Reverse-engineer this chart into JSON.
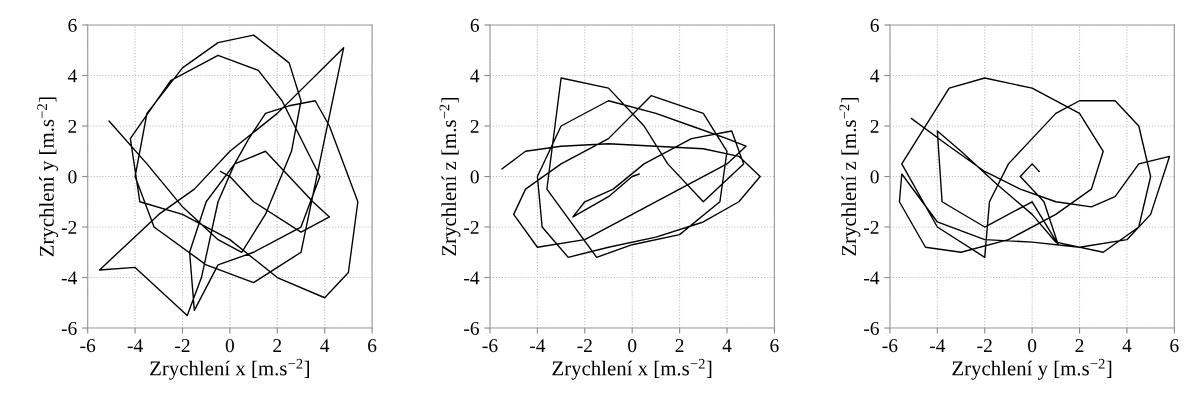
{
  "chart_data": [
    {
      "type": "line",
      "xlabel": "Zrychlení x [m.s$^{−2}$]",
      "ylabel": "Zrychlení y [m.s$^{−2}$]",
      "xlim": [
        -6,
        6
      ],
      "ylim": [
        -6,
        6
      ],
      "xticks": [
        -6,
        -4,
        -2,
        0,
        2,
        4,
        6
      ],
      "yticks": [
        -6,
        -4,
        -2,
        0,
        2,
        4,
        6
      ],
      "grid": true,
      "series": [
        {
          "color": "#000000",
          "x": [
            -5.1,
            -3.5,
            -2,
            -0.5,
            0.5,
            1.5,
            2.6,
            3.0,
            2.5,
            1,
            -0.5,
            -2,
            -3.5,
            -4,
            -3.2,
            -1,
            1,
            3,
            4.8,
            2,
            0,
            -1.5,
            -3,
            -5.5,
            -4,
            -1.8,
            -1.2,
            -0.5,
            0.2,
            0.8,
            1.5,
            2.5,
            3.6,
            4.2,
            5.4,
            5,
            4,
            2,
            0,
            -2,
            -3.8,
            -4.2,
            -2.5,
            -0.5,
            1.2,
            2.2,
            3.8,
            3,
            1,
            -0.5,
            -1.5,
            -1.7,
            -1,
            0.2,
            1.5,
            3.5,
            4.2,
            3,
            1,
            0,
            -0.4
          ],
          "values": [
            2.2,
            0.5,
            -1.2,
            -2.5,
            -3,
            -1.5,
            1,
            3,
            4.5,
            5.6,
            5.3,
            4.3,
            2.5,
            0,
            -2,
            -3.5,
            -4.2,
            -3,
            5.1,
            2.5,
            1,
            -0.5,
            -1.5,
            -3.7,
            -3.6,
            -5.5,
            -4,
            -1,
            0.5,
            1.5,
            2.5,
            2.8,
            3,
            2,
            -1,
            -3.8,
            -4.8,
            -4,
            -2.5,
            -1.5,
            -1,
            1.5,
            3.8,
            4.8,
            4.2,
            3,
            0,
            -2,
            -3,
            -3.5,
            -5.3,
            -3,
            -1,
            0.5,
            1,
            -1,
            -1.6,
            -2.2,
            -1,
            0,
            0.2
          ]
        }
      ]
    },
    {
      "type": "line",
      "xlabel": "Zrychlení x [m.s$^{−2}$]",
      "ylabel": "Zrychlení z [m.s$^{−2}$]",
      "xlim": [
        -6,
        6
      ],
      "ylim": [
        -6,
        6
      ],
      "xticks": [
        -6,
        -4,
        -2,
        0,
        2,
        4,
        6
      ],
      "yticks": [
        -6,
        -4,
        -2,
        0,
        2,
        4,
        6
      ],
      "grid": true,
      "series": [
        {
          "color": "#000000",
          "x": [
            -5.5,
            -4.5,
            -3,
            -1,
            1,
            3,
            4.5,
            5.4,
            4.5,
            3,
            1,
            -1,
            -2.7,
            -3.8,
            -4,
            -3,
            -1,
            1,
            2.5,
            4,
            4.8,
            4,
            2,
            0,
            -2,
            -4,
            -5,
            -4.5,
            -3,
            -1,
            0.8,
            3,
            4,
            3.7,
            2,
            0,
            -1.5,
            -3.6,
            -3,
            -1,
            0.5,
            1.5,
            3,
            4.7,
            4.2,
            2.5,
            0.5,
            -0.8,
            -2,
            -2.5,
            -1,
            0,
            0.3
          ],
          "values": [
            0.3,
            1,
            1.2,
            1.3,
            1.2,
            1.1,
            0.8,
            0,
            -1,
            -1.8,
            -2.4,
            -2.8,
            -3.2,
            -2,
            0,
            2,
            3,
            2.5,
            2,
            1.5,
            1.2,
            0.5,
            -0.5,
            -1.5,
            -2.5,
            -2.8,
            -1.5,
            -0.5,
            0.5,
            1.5,
            3.2,
            2.5,
            1,
            -1,
            -2.3,
            -2.7,
            -3.2,
            -0.5,
            3.9,
            3.5,
            2,
            0.5,
            -1,
            0.5,
            1.8,
            1.5,
            0.5,
            -0.5,
            -1,
            -1.6,
            -0.8,
            0,
            0.1
          ]
        }
      ]
    },
    {
      "type": "line",
      "xlabel": "Zrychlení y [m.s$^{−2}$]",
      "ylabel": "Zrychlení z [m.s$^{−2}$]",
      "xlim": [
        -6,
        6
      ],
      "ylim": [
        -6,
        6
      ],
      "xticks": [
        -6,
        -4,
        -2,
        0,
        2,
        4,
        6
      ],
      "yticks": [
        -6,
        -4,
        -2,
        0,
        2,
        4,
        6
      ],
      "grid": true,
      "series": [
        {
          "color": "#000000",
          "x": [
            -5.1,
            -3.5,
            -2,
            -0.5,
            1,
            2.5,
            3.5,
            4.5,
            5.8,
            5,
            4,
            2,
            0,
            -2,
            -4,
            -5.5,
            -5.6,
            -4.5,
            -3,
            -1,
            1,
            2.5,
            3,
            2,
            0,
            -2,
            -3.5,
            -5.5,
            -4,
            -2,
            -1.8,
            -1,
            0,
            1,
            2,
            3.5,
            4.5,
            5,
            4.5,
            3,
            1,
            0,
            -1.5,
            -3,
            -4,
            -3.8,
            -2,
            0,
            1.1,
            0.5,
            -0.5,
            0,
            0.3
          ],
          "values": [
            2.3,
            1.2,
            0.2,
            -0.5,
            -1,
            -1.2,
            -0.8,
            0.5,
            0.8,
            -1.5,
            -2.5,
            -2.8,
            -2.6,
            -2.5,
            -1.8,
            0.1,
            -1,
            -2.8,
            -3,
            -2.5,
            -1.5,
            -0.5,
            1,
            2.5,
            3.5,
            3.9,
            3.5,
            0.5,
            -2,
            -3.2,
            -1,
            0.5,
            1.5,
            2.5,
            3,
            3,
            2,
            0,
            -2,
            -3,
            -2.6,
            -1.5,
            -0.3,
            1,
            1.8,
            -1,
            -2,
            -1,
            -2.7,
            -1,
            0,
            0.5,
            0.2
          ]
        }
      ]
    }
  ]
}
